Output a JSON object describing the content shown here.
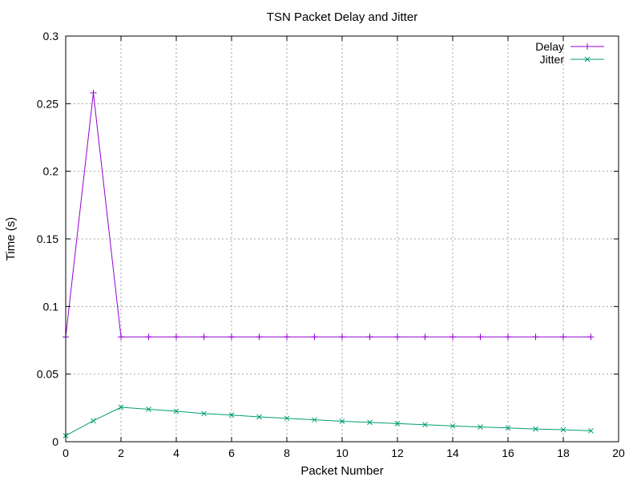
{
  "chart_data": {
    "type": "line",
    "title": "TSN Packet Delay and Jitter",
    "xlabel": "Packet Number",
    "ylabel": "Time (s)",
    "xlim": [
      0,
      20
    ],
    "ylim": [
      0,
      0.3
    ],
    "x_ticks": [
      0,
      2,
      4,
      6,
      8,
      10,
      12,
      14,
      16,
      18,
      20
    ],
    "y_ticks": [
      0,
      0.05,
      0.1,
      0.15,
      0.2,
      0.25,
      0.3
    ],
    "x_tick_labels": [
      "0",
      "2",
      "4",
      "6",
      "8",
      "10",
      "12",
      "14",
      "16",
      "18",
      "20"
    ],
    "y_tick_labels": [
      "0",
      "0.05",
      "0.1",
      "0.15",
      "0.2",
      "0.25",
      "0.3"
    ],
    "grid": true,
    "legend_position": "top-right",
    "x": [
      0,
      1,
      2,
      3,
      4,
      5,
      6,
      7,
      8,
      9,
      10,
      11,
      12,
      13,
      14,
      15,
      16,
      17,
      18,
      19
    ],
    "series": [
      {
        "name": "Delay",
        "color": "#9400d3",
        "marker": "plus",
        "values": [
          0.0775,
          0.258,
          0.0775,
          0.0775,
          0.0775,
          0.0775,
          0.0775,
          0.0775,
          0.0775,
          0.0775,
          0.0775,
          0.0775,
          0.0775,
          0.0775,
          0.0775,
          0.0775,
          0.0775,
          0.0775,
          0.0775,
          0.0775
        ]
      },
      {
        "name": "Jitter",
        "color": "#009e73",
        "marker": "cross",
        "values": [
          0.0045,
          0.0155,
          0.0255,
          0.024,
          0.0225,
          0.0208,
          0.0197,
          0.0184,
          0.0173,
          0.0162,
          0.0151,
          0.0143,
          0.0134,
          0.0126,
          0.0116,
          0.0109,
          0.0102,
          0.0094,
          0.0089,
          0.0081
        ]
      }
    ]
  }
}
